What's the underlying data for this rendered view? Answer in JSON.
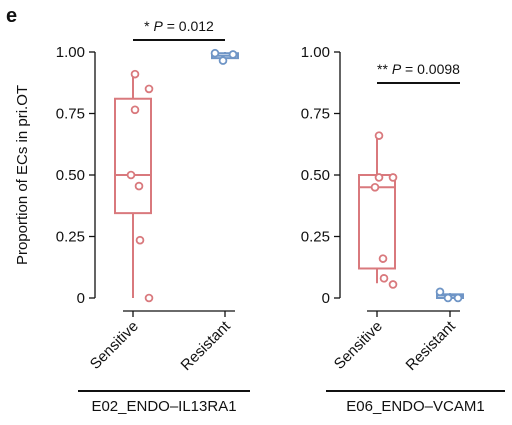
{
  "panel_label": "e",
  "colors": {
    "sensitive": "#d9797d",
    "resistant": "#6f95c6",
    "axis": "#111111"
  },
  "ylabel": "Proportion of ECs in pri.OT",
  "chart_data": [
    {
      "type": "box",
      "group_label": "E02_ENDO–IL13RA1",
      "categories": [
        "Sensitive",
        "Resistant"
      ],
      "ylim": [
        0,
        1
      ],
      "yticks": [
        0,
        0.25,
        0.5,
        0.75,
        1.0
      ],
      "ytick_labels": [
        "0",
        "0.25",
        "0.50",
        "0.75",
        "1.00"
      ],
      "boxes": [
        {
          "name": "Sensitive",
          "min": 0,
          "q1": 0.345,
          "median": 0.5,
          "q3": 0.81,
          "max": 0.91,
          "points": [
            0.91,
            0.85,
            0.765,
            0.5,
            0.455,
            0.235,
            0.0
          ]
        },
        {
          "name": "Resistant",
          "min": 0.965,
          "q1": 0.975,
          "median": 0.985,
          "q3": 0.995,
          "max": 1.0,
          "points": [
            0.995,
            0.99,
            0.965
          ]
        }
      ],
      "annotation": {
        "stars": "*",
        "p_label": "P",
        "p_value": " = 0.012"
      },
      "grid": false
    },
    {
      "type": "box",
      "group_label": "E06_ENDO–VCAM1",
      "categories": [
        "Sensitive",
        "Resistant"
      ],
      "ylim": [
        0,
        1
      ],
      "yticks": [
        0,
        0.25,
        0.5,
        0.75,
        1.0
      ],
      "ytick_labels": [
        "0",
        "0.25",
        "0.50",
        "0.75",
        "1.00"
      ],
      "boxes": [
        {
          "name": "Sensitive",
          "min": 0.06,
          "q1": 0.12,
          "median": 0.45,
          "q3": 0.5,
          "max": 0.66,
          "points": [
            0.66,
            0.49,
            0.49,
            0.45,
            0.16,
            0.08,
            0.055
          ]
        },
        {
          "name": "Resistant",
          "min": 0.0,
          "q1": 0.0,
          "median": 0.01,
          "q3": 0.015,
          "max": 0.02,
          "points": [
            0.025,
            0.0,
            0.0
          ]
        }
      ],
      "annotation": {
        "stars": "**",
        "p_label": "P",
        "p_value": " = 0.0098"
      },
      "grid": false
    }
  ]
}
